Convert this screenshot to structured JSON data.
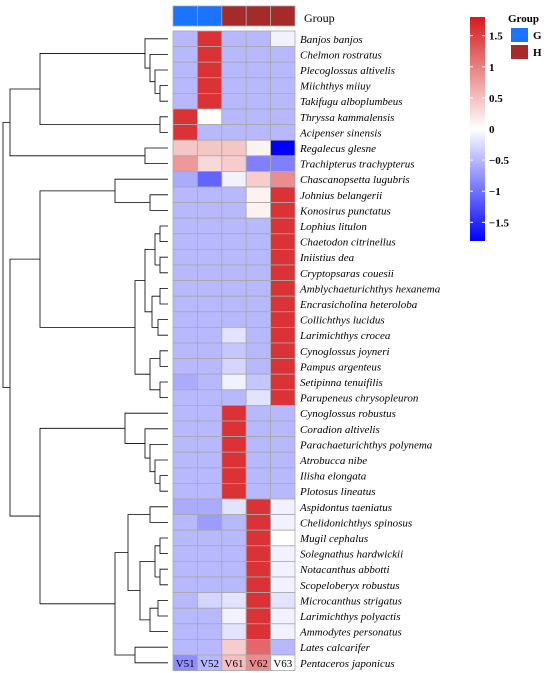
{
  "chart_data": {
    "type": "heatmap",
    "columns": [
      "V51",
      "V52",
      "V61",
      "V62",
      "V63"
    ],
    "column_groups": [
      "G",
      "G",
      "H",
      "H",
      "H"
    ],
    "group_annotation_title": "Group",
    "group_legend": {
      "title": "Group",
      "entries": [
        {
          "label": "G",
          "color": "#1a74ff"
        },
        {
          "label": "H",
          "color": "#a52a2a"
        }
      ]
    },
    "rows": [
      "Banjos banjos",
      "Chelmon rostratus",
      "Plecoglossus altivelis",
      "Miichthys miiuy",
      "Takifugu alboplumbeus",
      "Thryssa kammalensis",
      "Acipenser sinensis",
      "Regalecus glesne",
      "Trachipterus trachypterus",
      "Chascanopsetta lugubris",
      "Johnius belangerii",
      "Konosirus punctatus",
      "Lophius litulon",
      "Chaetodon citrinellus",
      "Iniistius dea",
      "Cryptopsaras couesii",
      "Amblychaeturichthys hexanema",
      "Encrasicholina heteroloba",
      "Collichthys lucidus",
      "Larimichthys crocea",
      "Cynoglossus joyneri",
      "Pampus argenteus",
      "Setipinna tenuifilis",
      "Parupeneus chrysopleuron",
      "Cynoglossus robustus",
      "Coradion altivelis",
      "Parachaeturichthys polynema",
      "Atrobucca nibe",
      "Ilisha elongata",
      "Plotosus lineatus",
      "Aspidontus taeniatus",
      "Chelidonichthys spinosus",
      "Mugil cephalus",
      "Solegnathus hardwickii",
      "Notacanthus abbotti",
      "Scopeloberyx robustus",
      "Microcanthus strigatus",
      "Larimichthys polyactis",
      "Ammodytes personatus",
      "Lates calcarifer",
      "Pentaceros japonicus"
    ],
    "values": [
      [
        -0.5,
        1.6,
        -0.5,
        -0.5,
        -0.1
      ],
      [
        -0.5,
        1.6,
        -0.5,
        -0.5,
        -0.5
      ],
      [
        -0.5,
        1.6,
        -0.5,
        -0.5,
        -0.5
      ],
      [
        -0.5,
        1.6,
        -0.5,
        -0.5,
        -0.5
      ],
      [
        -0.5,
        1.6,
        -0.5,
        -0.5,
        -0.5
      ],
      [
        1.6,
        0.0,
        -0.5,
        -0.5,
        -0.5
      ],
      [
        1.6,
        -0.5,
        -0.5,
        -0.5,
        -0.5
      ],
      [
        0.45,
        0.45,
        0.45,
        0.1,
        -1.8
      ],
      [
        0.8,
        0.3,
        0.4,
        -0.9,
        -0.9
      ],
      [
        -0.6,
        -1.1,
        -0.1,
        0.4,
        0.9
      ],
      [
        -0.5,
        -0.5,
        -0.5,
        0.1,
        1.6
      ],
      [
        -0.5,
        -0.5,
        -0.5,
        0.1,
        1.6
      ],
      [
        -0.5,
        -0.5,
        -0.5,
        -0.5,
        1.6
      ],
      [
        -0.5,
        -0.5,
        -0.5,
        -0.5,
        1.6
      ],
      [
        -0.5,
        -0.5,
        -0.5,
        -0.5,
        1.6
      ],
      [
        -0.5,
        -0.5,
        -0.5,
        -0.5,
        1.6
      ],
      [
        -0.5,
        -0.5,
        -0.5,
        -0.5,
        1.6
      ],
      [
        -0.5,
        -0.5,
        -0.5,
        -0.5,
        1.6
      ],
      [
        -0.5,
        -0.5,
        -0.5,
        -0.5,
        1.6
      ],
      [
        -0.5,
        -0.5,
        -0.2,
        -0.5,
        1.6
      ],
      [
        -0.5,
        -0.5,
        -0.4,
        -0.5,
        1.6
      ],
      [
        -0.5,
        -0.5,
        -0.3,
        -0.5,
        1.6
      ],
      [
        -0.6,
        -0.5,
        -0.1,
        -0.4,
        1.6
      ],
      [
        -0.5,
        -0.5,
        -0.5,
        -0.2,
        1.6
      ],
      [
        -0.5,
        -0.5,
        1.6,
        -0.5,
        -0.5
      ],
      [
        -0.5,
        -0.5,
        1.6,
        -0.5,
        -0.5
      ],
      [
        -0.5,
        -0.5,
        1.6,
        -0.5,
        -0.5
      ],
      [
        -0.5,
        -0.5,
        1.6,
        -0.5,
        -0.5
      ],
      [
        -0.5,
        -0.5,
        1.6,
        -0.5,
        -0.5
      ],
      [
        -0.5,
        -0.5,
        1.6,
        -0.5,
        -0.5
      ],
      [
        -0.6,
        -0.6,
        -0.2,
        1.6,
        -0.1
      ],
      [
        -0.5,
        -0.7,
        -0.5,
        1.6,
        -0.1
      ],
      [
        -0.5,
        -0.5,
        -0.5,
        1.6,
        0.0
      ],
      [
        -0.5,
        -0.5,
        -0.5,
        1.6,
        -0.1
      ],
      [
        -0.5,
        -0.5,
        -0.5,
        1.6,
        -0.1
      ],
      [
        -0.5,
        -0.5,
        -0.5,
        1.6,
        -0.1
      ],
      [
        -0.5,
        -0.3,
        -0.2,
        1.6,
        -0.2
      ],
      [
        -0.5,
        -0.5,
        -0.1,
        1.6,
        -0.1
      ],
      [
        -0.5,
        -0.5,
        -0.2,
        1.6,
        -0.1
      ],
      [
        -0.5,
        -0.5,
        0.4,
        1.2,
        -0.5
      ],
      [
        -0.8,
        -0.5,
        0.5,
        0.9,
        0.0
      ]
    ],
    "color_scale": {
      "low_color": "#0000ff",
      "mid_color": "#ffffff",
      "high_color": "#d7191c",
      "range": [
        -1.8,
        1.8
      ],
      "ticks": [
        1.5,
        1,
        0.5,
        0,
        -0.5,
        -1,
        -1.5
      ],
      "tick_labels": [
        "1.5",
        "1",
        "0.5",
        "0",
        "−0.5",
        "−1",
        "−1.5"
      ]
    },
    "row_dendrogram": true,
    "legend_placement": "right"
  }
}
